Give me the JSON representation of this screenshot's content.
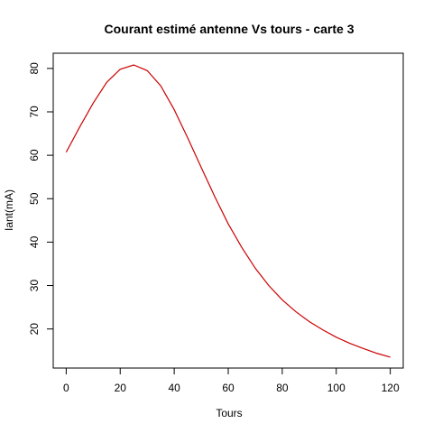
{
  "chart_data": {
    "type": "line",
    "title": "Courant estimé antenne Vs tours - carte 3",
    "xlabel": "Tours",
    "ylabel": "Iant(mA)",
    "xlim": [
      -4.8,
      124.8
    ],
    "ylim": [
      11.0,
      83.5
    ],
    "x_ticks": [
      0,
      20,
      40,
      60,
      80,
      100,
      120
    ],
    "y_ticks": [
      20,
      30,
      40,
      50,
      60,
      70,
      80
    ],
    "grid": false,
    "legend": "none",
    "series": [
      {
        "color": "#cc0000",
        "x": [
          0,
          5,
          10,
          15,
          20,
          25,
          30,
          35,
          40,
          45,
          50,
          55,
          60,
          65,
          70,
          75,
          80,
          85,
          90,
          95,
          100,
          105,
          110,
          115,
          120
        ],
        "values": [
          60.7,
          66.5,
          72.0,
          76.8,
          79.8,
          80.8,
          79.5,
          76.0,
          70.5,
          64.0,
          57.2,
          50.5,
          44.2,
          38.8,
          34.0,
          30.0,
          26.7,
          24.0,
          21.7,
          19.8,
          18.1,
          16.7,
          15.5,
          14.4,
          13.5
        ]
      }
    ]
  }
}
